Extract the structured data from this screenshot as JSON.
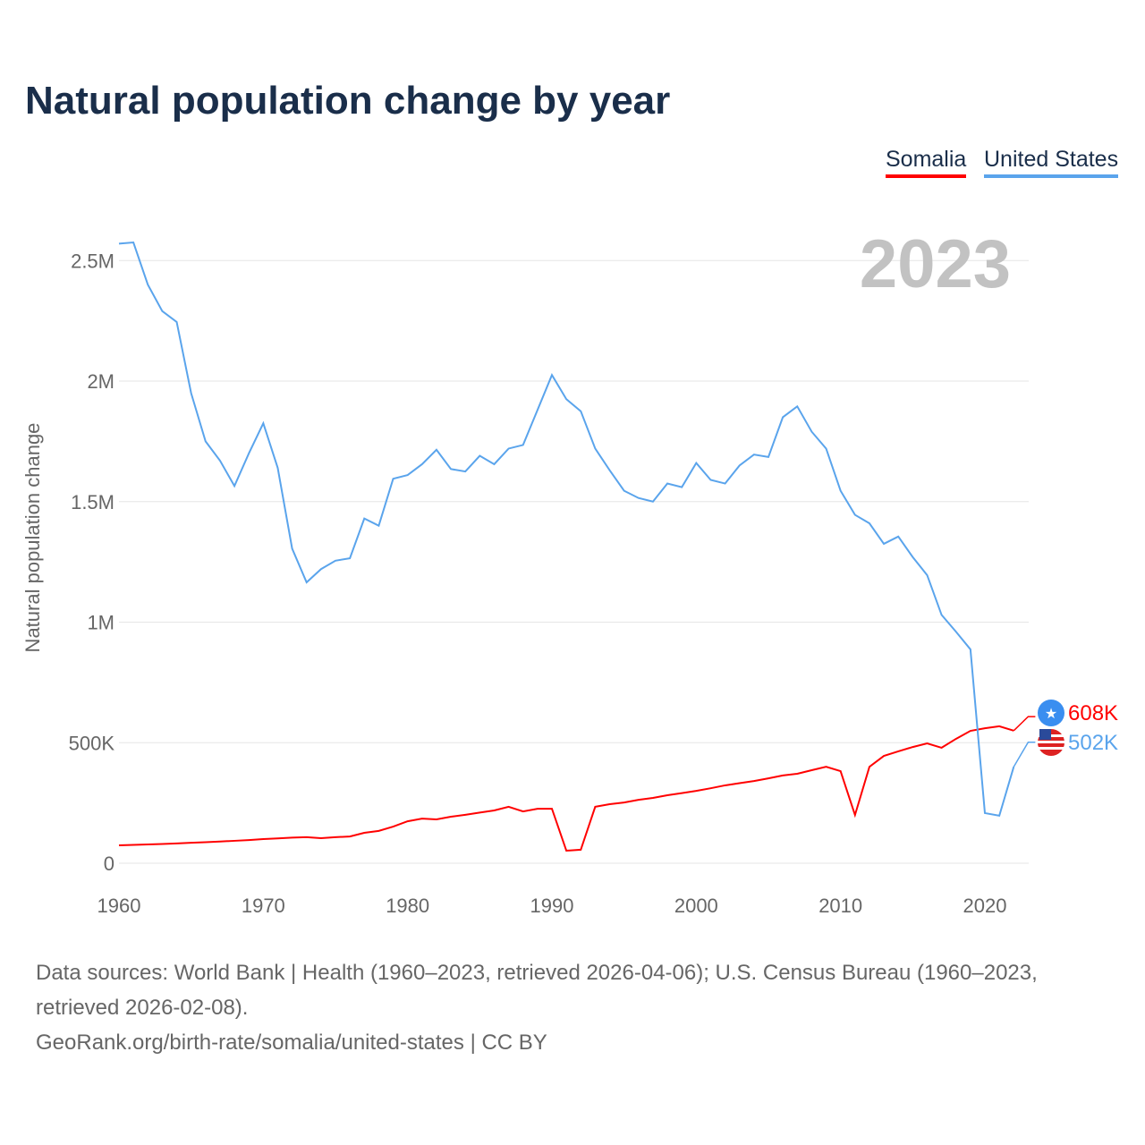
{
  "chart_data": {
    "type": "line",
    "title": "Natural population change by year",
    "ylabel": "Natural population change",
    "xlabel": "",
    "xlim": [
      1960,
      2023
    ],
    "ylim": [
      0,
      2700000
    ],
    "x_ticks": [
      "1960",
      "1970",
      "1980",
      "1990",
      "2000",
      "2010",
      "2020"
    ],
    "y_ticks": [
      {
        "v": 0,
        "label": "0"
      },
      {
        "v": 500000,
        "label": "500K"
      },
      {
        "v": 1000000,
        "label": "1M"
      },
      {
        "v": 1500000,
        "label": "1.5M"
      },
      {
        "v": 2000000,
        "label": "2M"
      },
      {
        "v": 2500000,
        "label": "2.5M"
      }
    ],
    "grid": true,
    "legend_placement": "top-right",
    "highlight_year": "2023",
    "series": [
      {
        "name": "Somalia",
        "color": "#ff0000",
        "end_label": "608K",
        "icon": "somalia-flag-icon",
        "values": [
          74000,
          76000,
          78000,
          80000,
          82000,
          85000,
          87000,
          90000,
          93000,
          96000,
          100000,
          103000,
          106000,
          108000,
          104000,
          108000,
          111000,
          126000,
          134000,
          152000,
          174000,
          185000,
          182000,
          193000,
          201000,
          210000,
          219000,
          234000,
          215000,
          226000,
          226000,
          52000,
          56000,
          234000,
          245000,
          252000,
          263000,
          271000,
          282000,
          291000,
          300000,
          311000,
          323000,
          332000,
          341000,
          352000,
          364000,
          371000,
          386000,
          400000,
          382000,
          200000,
          400000,
          445000,
          464000,
          482000,
          497000,
          479000,
          516000,
          549000,
          560000,
          568000,
          550000,
          608000
        ]
      },
      {
        "name": "United States",
        "color": "#5aa4ec",
        "end_label": "502K",
        "icon": "us-flag-icon",
        "values": [
          2570000,
          2575000,
          2400000,
          2290000,
          2245000,
          1950000,
          1750000,
          1670000,
          1565000,
          1700000,
          1825000,
          1640000,
          1305000,
          1165000,
          1220000,
          1255000,
          1265000,
          1430000,
          1400000,
          1595000,
          1610000,
          1655000,
          1715000,
          1635000,
          1625000,
          1690000,
          1655000,
          1720000,
          1735000,
          1880000,
          2025000,
          1925000,
          1875000,
          1720000,
          1630000,
          1545000,
          1515000,
          1500000,
          1575000,
          1560000,
          1660000,
          1590000,
          1575000,
          1650000,
          1695000,
          1685000,
          1850000,
          1895000,
          1790000,
          1720000,
          1545000,
          1445000,
          1410000,
          1325000,
          1355000,
          1270000,
          1195000,
          1030000,
          960000,
          887000,
          208000,
          197000,
          400000,
          502000
        ]
      }
    ]
  },
  "footer": {
    "line1": "Data sources: World Bank | Health (1960–2023, retrieved 2026-04-06); U.S. Census Bureau (1960–2023, retrieved 2026-02-08).",
    "line2": "GeoRank.org/birth-rate/somalia/united-states | CC BY"
  }
}
